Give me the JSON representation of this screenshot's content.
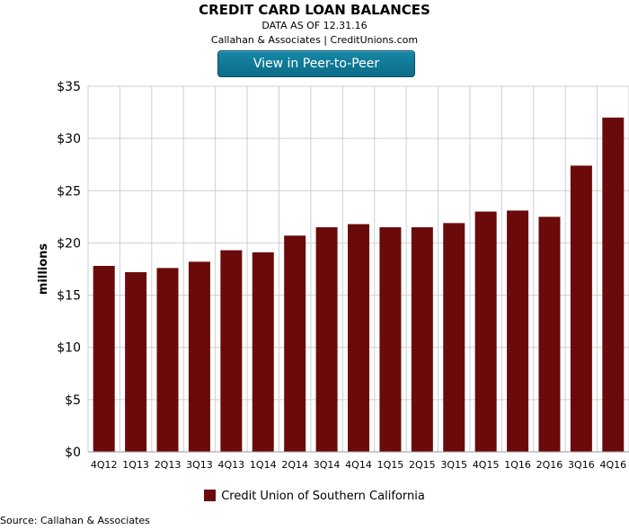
{
  "header": {
    "title": "CREDIT CARD LOAN BALANCES",
    "data_date": "DATA AS OF 12.31.16",
    "attribution": "Callahan & Associates | CreditUnions.com",
    "button_label": "View in Peer-to-Peer"
  },
  "footer": {
    "source": "Source: Callahan & Associates"
  },
  "colors": {
    "bar": "#6b0a0a",
    "button": "#0f7a98",
    "grid": "#cfcfcf"
  },
  "chart_data": {
    "type": "bar",
    "title": "CREDIT CARD LOAN BALANCES",
    "ylabel": "millions",
    "xlabel": "",
    "categories": [
      "4Q12",
      "1Q13",
      "2Q13",
      "3Q13",
      "4Q13",
      "1Q14",
      "2Q14",
      "3Q14",
      "4Q14",
      "1Q15",
      "2Q15",
      "3Q15",
      "4Q15",
      "1Q16",
      "2Q16",
      "3Q16",
      "4Q16"
    ],
    "series": [
      {
        "name": "Credit Union of Southern California",
        "values": [
          17.8,
          17.2,
          17.6,
          18.2,
          19.3,
          19.1,
          20.7,
          21.5,
          21.8,
          21.5,
          21.5,
          21.9,
          23.0,
          23.1,
          22.5,
          27.4,
          32.0
        ]
      }
    ],
    "ylim": [
      0,
      35
    ],
    "yticks": [
      0,
      5,
      10,
      15,
      20,
      25,
      30,
      35
    ],
    "ytick_labels": [
      "$0",
      "$5",
      "$10",
      "$15",
      "$20",
      "$25",
      "$30",
      "$35"
    ],
    "grid": true,
    "legend_position": "bottom-center"
  }
}
